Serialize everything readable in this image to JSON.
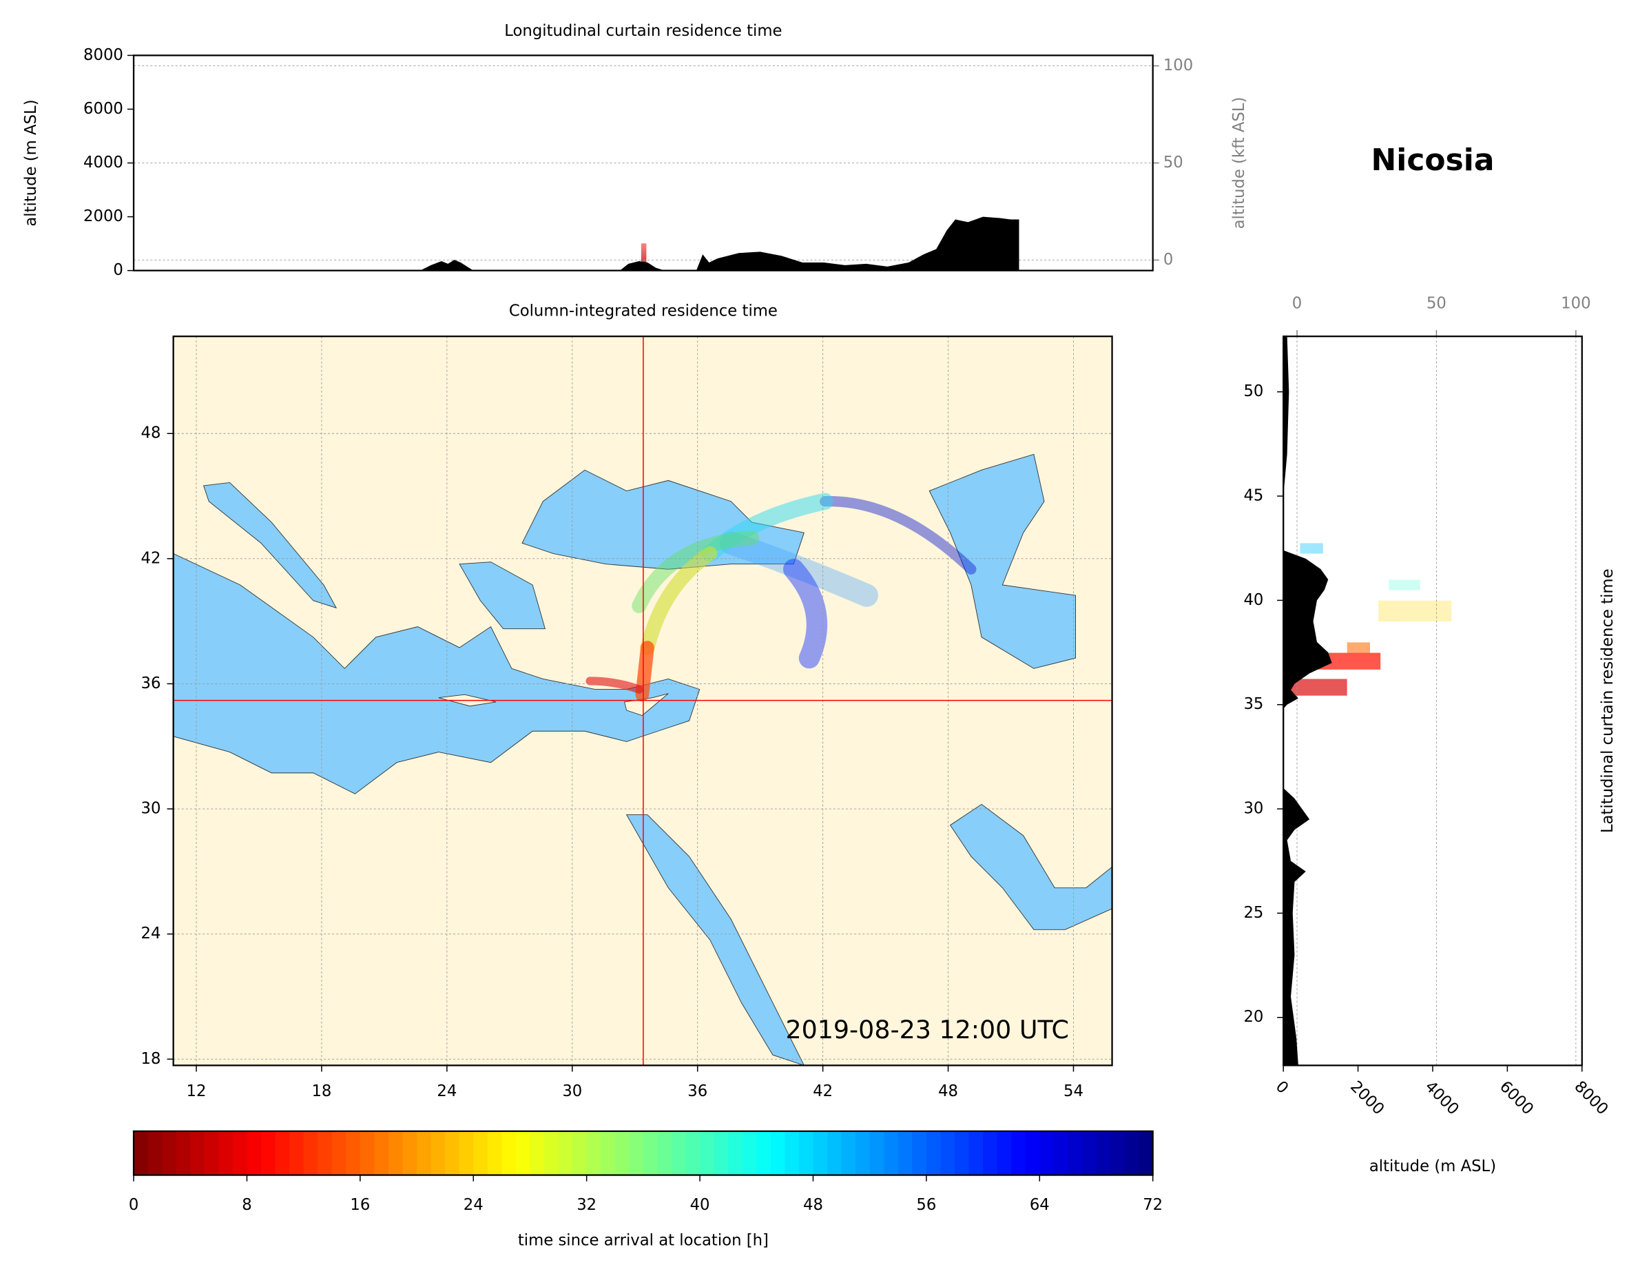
{
  "station": "Nicosia",
  "chart_data": [
    {
      "type": "area",
      "title": "Longitudinal curtain residence time",
      "ylabel": "altitude (m ASL)",
      "y2label": "altitude (kft ASL)",
      "xlim": [
        9,
        57
      ],
      "ylim": [
        0,
        8000
      ],
      "yticks": [
        0,
        2000,
        4000,
        6000,
        8000
      ],
      "y2lim": [
        -5.4,
        105.4
      ],
      "y2ticks": [
        0,
        50,
        100
      ],
      "grid": true,
      "color": "#000000",
      "x": [
        9,
        22.5,
        23,
        23.5,
        23.8,
        24.1,
        24.4,
        24.7,
        25,
        31.9,
        32.3,
        32.8,
        33.2,
        33.6,
        34,
        35.5,
        35.8,
        36.1,
        36.5,
        37.5,
        38.5,
        39.5,
        40.5,
        41.5,
        42.5,
        43.5,
        44.5,
        45.5,
        46.2,
        46.8,
        47.3,
        47.7,
        48.3,
        49,
        49.8,
        50.3,
        50.7
      ],
      "values": [
        0,
        0,
        200,
        350,
        250,
        400,
        300,
        150,
        0,
        0,
        250,
        350,
        300,
        100,
        0,
        0,
        600,
        300,
        450,
        650,
        700,
        550,
        300,
        300,
        200,
        250,
        150,
        300,
        600,
        800,
        1500,
        1900,
        1800,
        2000,
        1950,
        1900,
        1900
      ]
    },
    {
      "type": "map",
      "title": "Column-integrated residence time",
      "annotation": "2019-08-23 12:00 UTC",
      "xlim": [
        10.9,
        55.85
      ],
      "ylim": [
        17.7,
        52.66
      ],
      "xticks": [
        12,
        18,
        24,
        30,
        36,
        42,
        48,
        54
      ],
      "yticks": [
        18,
        24,
        30,
        36,
        42,
        48
      ],
      "grid": true,
      "crosshair": {
        "x": 33.4,
        "y": 35.2,
        "color": "#ff0000"
      }
    },
    {
      "type": "profile",
      "title": "Latitudinal curtain residence time",
      "xlabel": "altitude (m ASL)",
      "xlim": [
        0,
        8000
      ],
      "xticks": [
        0,
        2000,
        4000,
        6000,
        8000
      ],
      "x2lim": [
        -4.9,
        102.2
      ],
      "x2ticks": [
        0,
        50,
        100
      ],
      "ylim": [
        17.7,
        52.66
      ],
      "yticks": [
        20,
        25,
        30,
        35,
        40,
        45,
        50
      ],
      "grid": true,
      "color": "#000000",
      "y": [
        52.7,
        50,
        47,
        45,
        42.4,
        42,
        41.5,
        41,
        40.5,
        40,
        39,
        38,
        37.5,
        37,
        36.5,
        36,
        35.7,
        35.3,
        35,
        34.8,
        31,
        30.5,
        29.5,
        29,
        28.5,
        27.5,
        27,
        26.5,
        25,
        23,
        21,
        19,
        17.7
      ],
      "values": [
        100,
        150,
        100,
        0,
        0,
        600,
        1000,
        1200,
        1100,
        900,
        800,
        900,
        1200,
        1300,
        700,
        300,
        200,
        400,
        100,
        0,
        0,
        300,
        700,
        300,
        100,
        200,
        600,
        300,
        250,
        300,
        200,
        350,
        400
      ]
    },
    {
      "type": "colorbar",
      "xlabel": "time since arrival at location [h]",
      "colormap": "jet_r",
      "xlim": [
        0,
        72
      ],
      "xticks": [
        0,
        8,
        16,
        24,
        32,
        40,
        48,
        56,
        64,
        72
      ]
    }
  ]
}
